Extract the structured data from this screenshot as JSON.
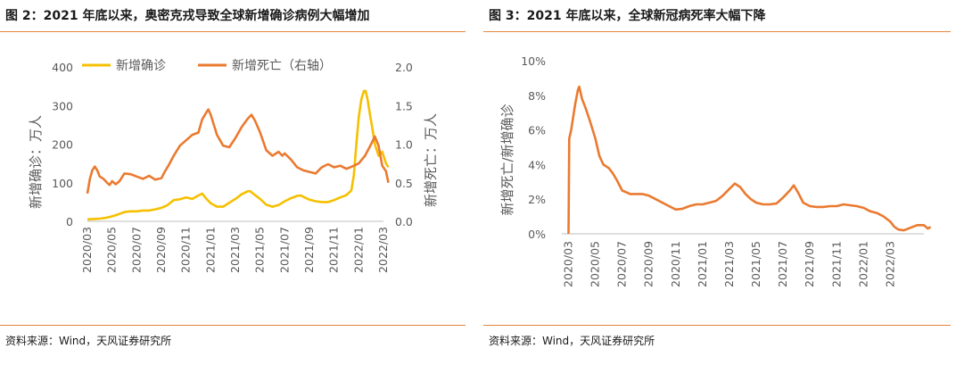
{
  "colors": {
    "accent": "#e3853f",
    "cases": "#f5c000",
    "deaths": "#ea7a30",
    "text": "#595959"
  },
  "left": {
    "title": "图 2：2021 年底以来，奥密克戎导致全球新增确诊病例大幅增加",
    "source": "资料来源：Wind，天风证券研究所"
  },
  "right": {
    "title": "图 3：2021 年底以来，全球新冠病死率大幅下降",
    "source": "资料来源：Wind，天风证券研究所"
  },
  "chart_data": [
    {
      "type": "line",
      "title": "",
      "xlabel": "",
      "ylabel": "新增确诊：万人",
      "y2label": "新增死亡：万人",
      "legend_position": "top",
      "grid": false,
      "ylim": [
        0,
        400
      ],
      "y2lim": [
        0,
        2.0
      ],
      "y_ticks": [
        "0",
        "100",
        "200",
        "300",
        "400"
      ],
      "y2_ticks": [
        "0.0",
        "0.5",
        "1.0",
        "1.5",
        "2.0"
      ],
      "x_ticks": [
        "2020/03",
        "2020/05",
        "2020/07",
        "2020/09",
        "2020/11",
        "2021/01",
        "2021/03",
        "2021/05",
        "2021/07",
        "2021/09",
        "2021/11",
        "2022/01",
        "2022/03"
      ],
      "x_start": "2020/03",
      "series": [
        {
          "name": "新增确诊",
          "axis": "left",
          "points": [
            [
              0,
              5
            ],
            [
              0.5,
              6
            ],
            [
              1,
              7
            ],
            [
              1.5,
              9
            ],
            [
              2,
              13
            ],
            [
              2.5,
              18
            ],
            [
              3,
              24
            ],
            [
              3.5,
              26
            ],
            [
              4,
              26
            ],
            [
              4.5,
              28
            ],
            [
              5,
              28
            ],
            [
              5.5,
              31
            ],
            [
              6,
              35
            ],
            [
              6.5,
              42
            ],
            [
              7,
              55
            ],
            [
              7.5,
              57
            ],
            [
              8,
              62
            ],
            [
              8.5,
              58
            ],
            [
              9,
              67
            ],
            [
              9.3,
              72
            ],
            [
              9.6,
              60
            ],
            [
              10,
              47
            ],
            [
              10.5,
              38
            ],
            [
              11,
              38
            ],
            [
              11.5,
              48
            ],
            [
              12,
              58
            ],
            [
              12.5,
              70
            ],
            [
              13,
              78
            ],
            [
              13.2,
              78
            ],
            [
              13.5,
              70
            ],
            [
              14,
              58
            ],
            [
              14.5,
              43
            ],
            [
              15,
              38
            ],
            [
              15.5,
              42
            ],
            [
              16,
              52
            ],
            [
              16.5,
              60
            ],
            [
              17,
              66
            ],
            [
              17.3,
              67
            ],
            [
              17.6,
              62
            ],
            [
              18,
              56
            ],
            [
              18.5,
              52
            ],
            [
              19,
              50
            ],
            [
              19.5,
              50
            ],
            [
              20,
              55
            ],
            [
              20.5,
              62
            ],
            [
              21,
              68
            ],
            [
              21.4,
              80
            ],
            [
              21.6,
              120
            ],
            [
              21.8,
              200
            ],
            [
              22,
              270
            ],
            [
              22.2,
              315
            ],
            [
              22.4,
              337
            ],
            [
              22.55,
              338
            ],
            [
              22.7,
              318
            ],
            [
              22.9,
              278
            ],
            [
              23.1,
              240
            ],
            [
              23.3,
              200
            ],
            [
              23.6,
              170
            ],
            [
              23.9,
              180
            ],
            [
              24.2,
              150
            ],
            [
              24.4,
              140
            ]
          ]
        },
        {
          "name": "新增死亡（右轴）",
          "axis": "right",
          "points": [
            [
              0,
              0.36
            ],
            [
              0.2,
              0.55
            ],
            [
              0.4,
              0.66
            ],
            [
              0.6,
              0.71
            ],
            [
              0.8,
              0.66
            ],
            [
              1,
              0.58
            ],
            [
              1.3,
              0.55
            ],
            [
              1.6,
              0.5
            ],
            [
              1.8,
              0.47
            ],
            [
              2,
              0.52
            ],
            [
              2.3,
              0.48
            ],
            [
              2.6,
              0.52
            ],
            [
              3,
              0.62
            ],
            [
              3.5,
              0.61
            ],
            [
              4,
              0.58
            ],
            [
              4.5,
              0.55
            ],
            [
              5,
              0.59
            ],
            [
              5.5,
              0.54
            ],
            [
              6,
              0.56
            ],
            [
              6.3,
              0.65
            ],
            [
              6.6,
              0.73
            ],
            [
              7,
              0.85
            ],
            [
              7.5,
              0.98
            ],
            [
              8,
              1.05
            ],
            [
              8.5,
              1.12
            ],
            [
              9,
              1.15
            ],
            [
              9.3,
              1.32
            ],
            [
              9.6,
              1.4
            ],
            [
              9.8,
              1.45
            ],
            [
              10,
              1.38
            ],
            [
              10.5,
              1.12
            ],
            [
              11,
              0.98
            ],
            [
              11.5,
              0.96
            ],
            [
              12,
              1.08
            ],
            [
              12.5,
              1.22
            ],
            [
              13,
              1.33
            ],
            [
              13.3,
              1.38
            ],
            [
              13.6,
              1.3
            ],
            [
              14,
              1.15
            ],
            [
              14.5,
              0.92
            ],
            [
              15,
              0.85
            ],
            [
              15.5,
              0.9
            ],
            [
              15.8,
              0.85
            ],
            [
              16,
              0.88
            ],
            [
              16.5,
              0.8
            ],
            [
              17,
              0.7
            ],
            [
              17.5,
              0.66
            ],
            [
              18,
              0.64
            ],
            [
              18.5,
              0.62
            ],
            [
              19,
              0.7
            ],
            [
              19.5,
              0.74
            ],
            [
              20,
              0.7
            ],
            [
              20.5,
              0.72
            ],
            [
              21,
              0.68
            ],
            [
              21.3,
              0.7
            ],
            [
              21.6,
              0.72
            ],
            [
              22,
              0.75
            ],
            [
              22.5,
              0.85
            ],
            [
              23,
              1.0
            ],
            [
              23.3,
              1.1
            ],
            [
              23.6,
              0.98
            ],
            [
              23.9,
              0.72
            ],
            [
              24.2,
              0.65
            ],
            [
              24.4,
              0.5
            ]
          ]
        }
      ]
    },
    {
      "type": "line",
      "title": "",
      "xlabel": "",
      "ylabel": "新增死亡/新增确诊",
      "legend_position": "none",
      "grid": false,
      "ylim": [
        0,
        10
      ],
      "y_ticks": [
        "0%",
        "2%",
        "4%",
        "6%",
        "8%",
        "10%"
      ],
      "x_ticks": [
        "2020/03",
        "2020/05",
        "2020/07",
        "2020/09",
        "2020/11",
        "2021/01",
        "2021/03",
        "2021/05",
        "2021/07",
        "2021/09",
        "2021/11",
        "2022/01",
        "2022/03"
      ],
      "x_start": "2020/03",
      "series": [
        {
          "name": "",
          "points": [
            [
              0,
              0
            ],
            [
              0.05,
              5.5
            ],
            [
              0.2,
              6
            ],
            [
              0.5,
              7.5
            ],
            [
              0.7,
              8.3
            ],
            [
              0.8,
              8.5
            ],
            [
              1,
              7.8
            ],
            [
              1.3,
              7.2
            ],
            [
              1.6,
              6.5
            ],
            [
              2,
              5.5
            ],
            [
              2.3,
              4.5
            ],
            [
              2.6,
              4
            ],
            [
              3,
              3.8
            ],
            [
              3.3,
              3.5
            ],
            [
              3.6,
              3.1
            ],
            [
              4,
              2.5
            ],
            [
              4.3,
              2.4
            ],
            [
              4.6,
              2.3
            ],
            [
              5,
              2.3
            ],
            [
              5.5,
              2.3
            ],
            [
              6,
              2.2
            ],
            [
              6.5,
              2
            ],
            [
              7,
              1.8
            ],
            [
              7.5,
              1.6
            ],
            [
              8,
              1.4
            ],
            [
              8.5,
              1.45
            ],
            [
              9,
              1.6
            ],
            [
              9.5,
              1.7
            ],
            [
              10,
              1.7
            ],
            [
              10.5,
              1.8
            ],
            [
              11,
              1.9
            ],
            [
              11.5,
              2.2
            ],
            [
              12,
              2.6
            ],
            [
              12.4,
              2.9
            ],
            [
              12.8,
              2.7
            ],
            [
              13.2,
              2.3
            ],
            [
              13.6,
              2
            ],
            [
              14,
              1.8
            ],
            [
              14.5,
              1.7
            ],
            [
              15,
              1.7
            ],
            [
              15.5,
              1.75
            ],
            [
              16,
              2.1
            ],
            [
              16.5,
              2.5
            ],
            [
              16.8,
              2.8
            ],
            [
              17.1,
              2.4
            ],
            [
              17.5,
              1.8
            ],
            [
              18,
              1.6
            ],
            [
              18.5,
              1.55
            ],
            [
              19,
              1.55
            ],
            [
              19.5,
              1.6
            ],
            [
              20,
              1.6
            ],
            [
              20.5,
              1.7
            ],
            [
              21,
              1.65
            ],
            [
              21.5,
              1.6
            ],
            [
              22,
              1.5
            ],
            [
              22.5,
              1.3
            ],
            [
              23,
              1.2
            ],
            [
              23.5,
              1
            ],
            [
              24,
              0.7
            ],
            [
              24.3,
              0.4
            ],
            [
              24.6,
              0.25
            ],
            [
              25,
              0.2
            ],
            [
              25.5,
              0.35
            ],
            [
              26,
              0.5
            ],
            [
              26.5,
              0.5
            ],
            [
              26.8,
              0.3
            ],
            [
              27,
              0.4
            ]
          ]
        }
      ]
    }
  ]
}
